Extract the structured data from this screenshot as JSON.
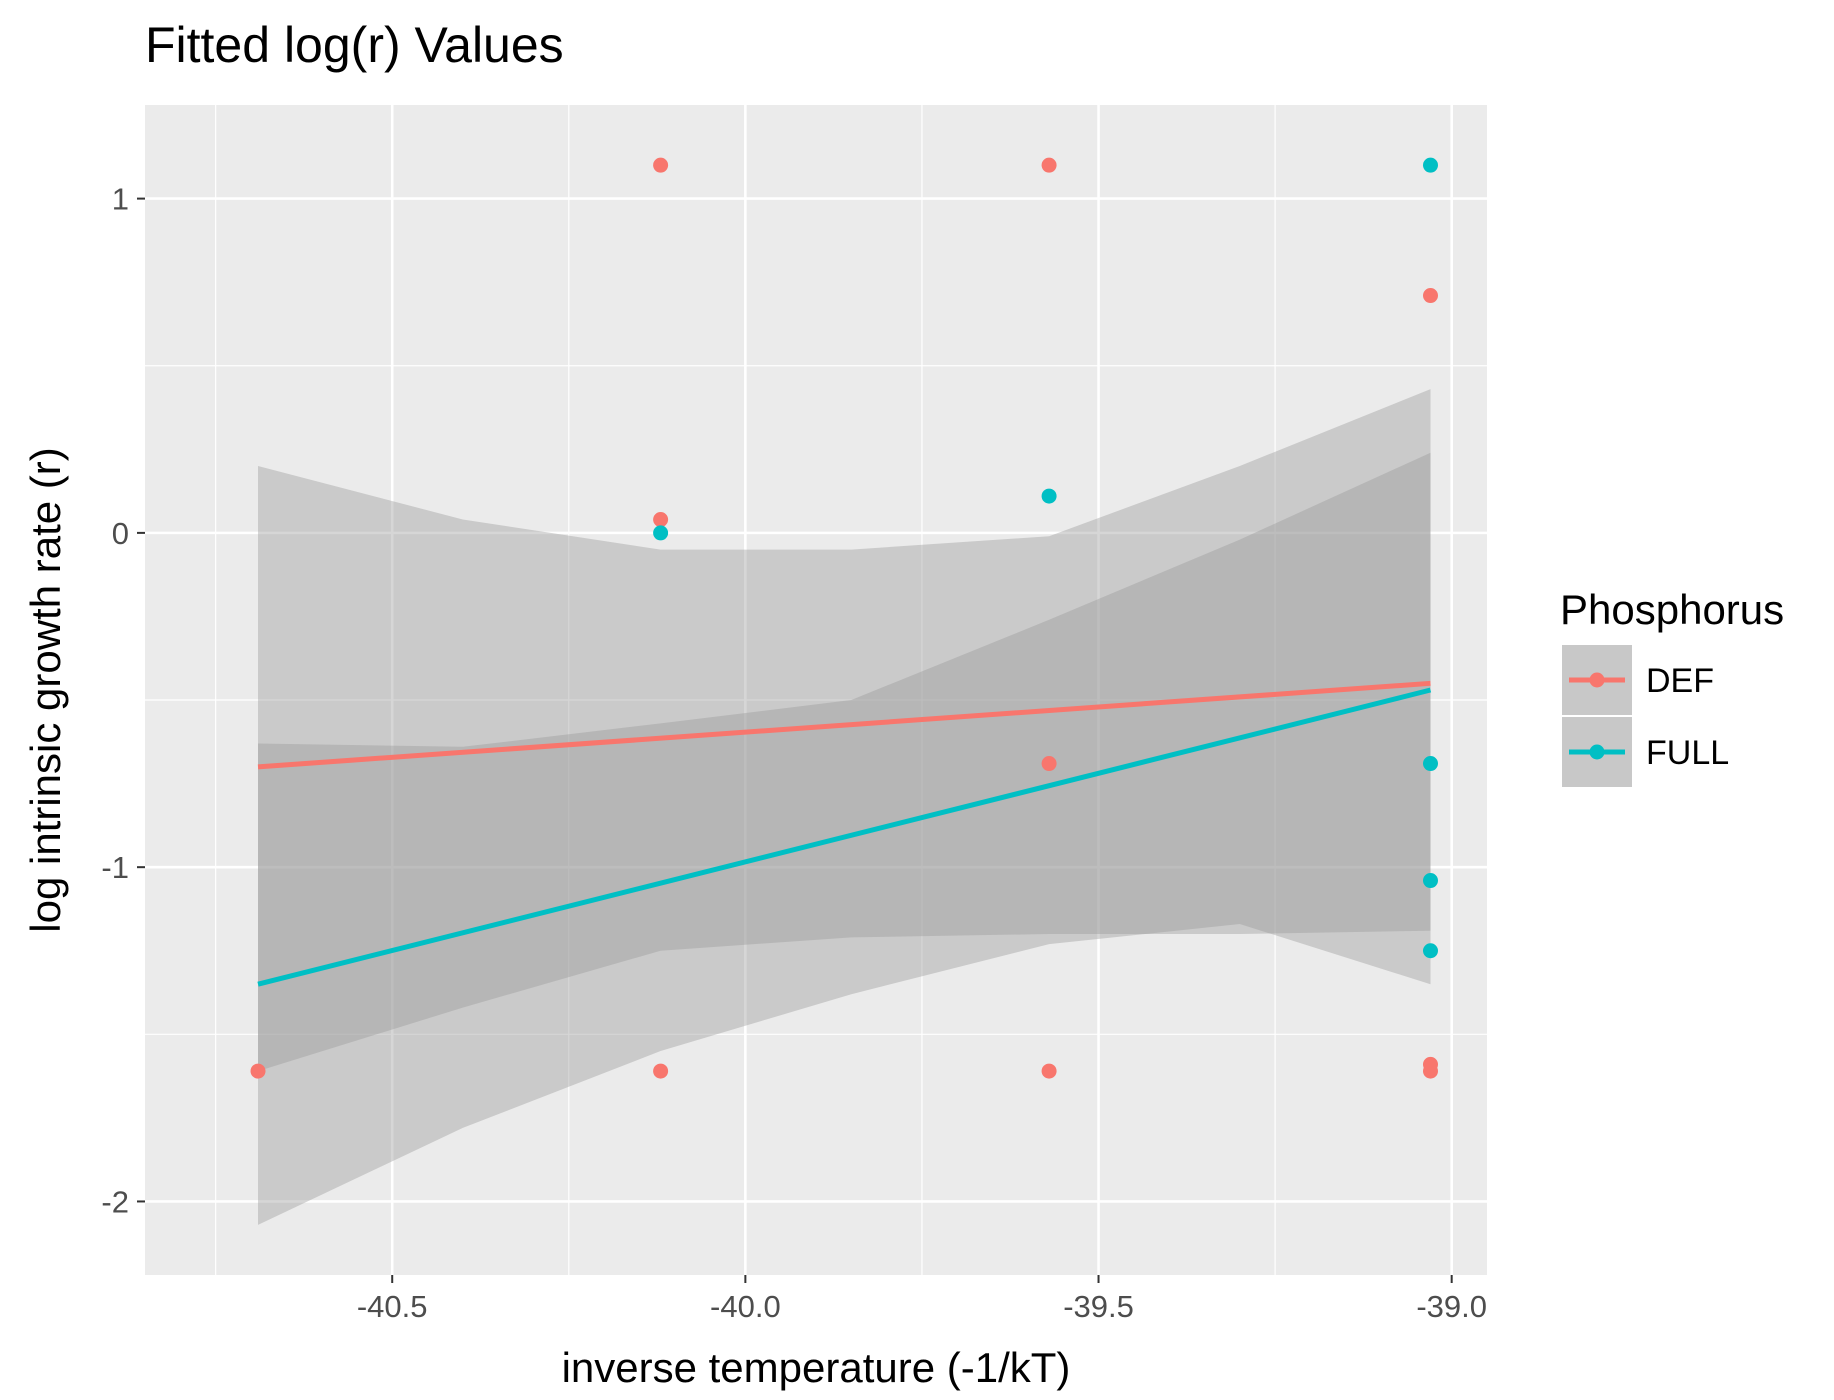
{
  "chart_data": {
    "type": "scatter",
    "title": "Fitted log(r) Values",
    "xlabel": "inverse temperature (-1/kT)",
    "ylabel": "log intrinsic growth rate (r)",
    "xlim": [
      -40.85,
      -38.95
    ],
    "ylim": [
      -2.22,
      1.28
    ],
    "x_ticks": [
      -40.5,
      -40.0,
      -39.5,
      -39.0
    ],
    "x_tick_labels": [
      "-40.5",
      "-40.0",
      "-39.5",
      "-39.0"
    ],
    "y_ticks": [
      -2,
      -1,
      0,
      1
    ],
    "y_tick_labels": [
      "-2",
      "-1",
      "0",
      "1"
    ],
    "grid": true,
    "legend": {
      "title": "Phosphorus",
      "position": "right"
    },
    "series": [
      {
        "name": "DEF",
        "color": "#F8766D",
        "points": [
          {
            "x": -40.69,
            "y": -1.61
          },
          {
            "x": -40.12,
            "y": 1.1
          },
          {
            "x": -40.12,
            "y": 0.04
          },
          {
            "x": -40.12,
            "y": -1.61
          },
          {
            "x": -39.57,
            "y": 1.1
          },
          {
            "x": -39.57,
            "y": -0.69
          },
          {
            "x": -39.57,
            "y": -1.61
          },
          {
            "x": -39.03,
            "y": 0.71
          },
          {
            "x": -39.03,
            "y": -1.59
          },
          {
            "x": -39.03,
            "y": -1.61
          }
        ],
        "fit": {
          "x": [
            -40.69,
            -39.03
          ],
          "y": [
            -0.7,
            -0.45
          ]
        },
        "ci": {
          "x": [
            -40.69,
            -40.4,
            -40.12,
            -39.85,
            -39.57,
            -39.3,
            -39.03
          ],
          "lower": [
            -1.61,
            -1.42,
            -1.25,
            -1.21,
            -1.2,
            -1.2,
            -1.19
          ],
          "upper": [
            0.2,
            0.04,
            -0.05,
            -0.05,
            -0.01,
            0.2,
            0.43
          ]
        }
      },
      {
        "name": "FULL",
        "color": "#00BFC4",
        "points": [
          {
            "x": -40.12,
            "y": 0.0
          },
          {
            "x": -39.57,
            "y": 0.11
          },
          {
            "x": -39.03,
            "y": 1.1
          },
          {
            "x": -39.03,
            "y": -0.69
          },
          {
            "x": -39.03,
            "y": -1.04
          },
          {
            "x": -39.03,
            "y": -1.25
          }
        ],
        "fit": {
          "x": [
            -40.69,
            -39.03
          ],
          "y": [
            -1.35,
            -0.47
          ]
        },
        "ci": {
          "x": [
            -40.69,
            -40.4,
            -40.12,
            -39.85,
            -39.57,
            -39.3,
            -39.03
          ],
          "lower": [
            -2.07,
            -1.78,
            -1.55,
            -1.38,
            -1.23,
            -1.17,
            -1.35
          ],
          "upper": [
            -0.63,
            -0.64,
            -0.57,
            -0.5,
            -0.26,
            -0.02,
            0.24
          ]
        }
      }
    ]
  }
}
